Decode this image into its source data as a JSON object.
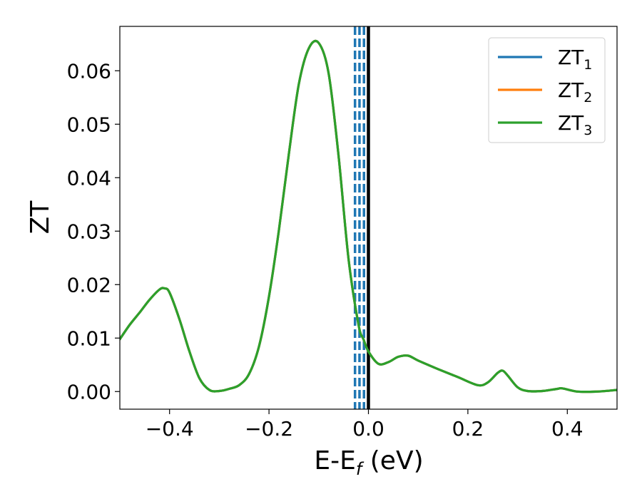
{
  "chart_data": {
    "type": "line",
    "title": "",
    "xlabel": "E-E",
    "xlabel_subscript": "f",
    "xlabel_unit": " (eV)",
    "ylabel": "ZT",
    "xlim": [
      -0.5,
      0.5
    ],
    "ylim": [
      -0.0033,
      0.0683
    ],
    "xticks": [
      -0.4,
      -0.2,
      0.0,
      0.2,
      0.4
    ],
    "xtick_labels": [
      "−0.4",
      "−0.2",
      "0.0",
      "0.2",
      "0.4"
    ],
    "yticks": [
      0.0,
      0.01,
      0.02,
      0.03,
      0.04,
      0.05,
      0.06
    ],
    "ytick_labels": [
      "0.00",
      "0.01",
      "0.02",
      "0.03",
      "0.04",
      "0.05",
      "0.06"
    ],
    "grid": false,
    "legend_position": "top-right",
    "series": [
      {
        "name": "ZT",
        "name_subscript": "1",
        "color": "#1f77b4",
        "x": [
          -0.5,
          -0.48,
          -0.46,
          -0.44,
          -0.42,
          -0.41,
          -0.4,
          -0.38,
          -0.36,
          -0.34,
          -0.32,
          -0.3,
          -0.28,
          -0.26,
          -0.24,
          -0.22,
          -0.2,
          -0.18,
          -0.16,
          -0.14,
          -0.12,
          -0.1,
          -0.08,
          -0.06,
          -0.04,
          -0.02,
          -0.01,
          0.0,
          0.02,
          0.04,
          0.06,
          0.08,
          0.1,
          0.14,
          0.18,
          0.22,
          0.24,
          0.26,
          0.27,
          0.28,
          0.3,
          0.32,
          0.35,
          0.38,
          0.39,
          0.42,
          0.46,
          0.5
        ],
        "y": [
          0.0098,
          0.0125,
          0.0148,
          0.0172,
          0.0191,
          0.0193,
          0.0185,
          0.0135,
          0.0075,
          0.0025,
          0.0003,
          0.0001,
          0.0005,
          0.0012,
          0.0033,
          0.0085,
          0.0178,
          0.0302,
          0.0445,
          0.0575,
          0.0642,
          0.0652,
          0.0595,
          0.044,
          0.0248,
          0.0125,
          0.0098,
          0.0075,
          0.0052,
          0.0055,
          0.0065,
          0.0067,
          0.0058,
          0.0042,
          0.0027,
          0.0012,
          0.0017,
          0.0035,
          0.0039,
          0.003,
          0.0008,
          0.0001,
          0.0001,
          0.0005,
          0.0006,
          0.0,
          0.0,
          0.0003
        ]
      },
      {
        "name": "ZT",
        "name_subscript": "2",
        "color": "#ff7f0e",
        "x": [
          -0.5,
          -0.48,
          -0.46,
          -0.44,
          -0.42,
          -0.41,
          -0.4,
          -0.38,
          -0.36,
          -0.34,
          -0.32,
          -0.3,
          -0.28,
          -0.26,
          -0.24,
          -0.22,
          -0.2,
          -0.18,
          -0.16,
          -0.14,
          -0.12,
          -0.1,
          -0.08,
          -0.06,
          -0.04,
          -0.02,
          -0.01,
          0.0,
          0.02,
          0.04,
          0.06,
          0.08,
          0.1,
          0.14,
          0.18,
          0.22,
          0.24,
          0.26,
          0.27,
          0.28,
          0.3,
          0.32,
          0.35,
          0.38,
          0.39,
          0.42,
          0.46,
          0.5
        ],
        "y": [
          0.0098,
          0.0125,
          0.0148,
          0.0172,
          0.0191,
          0.0193,
          0.0185,
          0.0135,
          0.0075,
          0.0025,
          0.0003,
          0.0001,
          0.0005,
          0.0012,
          0.0033,
          0.0085,
          0.0178,
          0.0302,
          0.0445,
          0.0575,
          0.0642,
          0.0652,
          0.0595,
          0.044,
          0.0248,
          0.0125,
          0.0098,
          0.0075,
          0.0052,
          0.0055,
          0.0065,
          0.0067,
          0.0058,
          0.0042,
          0.0027,
          0.0012,
          0.0017,
          0.0035,
          0.0039,
          0.003,
          0.0008,
          0.0001,
          0.0001,
          0.0005,
          0.0006,
          0.0,
          0.0,
          0.0003
        ]
      },
      {
        "name": "ZT",
        "name_subscript": "3",
        "color": "#2ca02c",
        "x": [
          -0.5,
          -0.48,
          -0.46,
          -0.44,
          -0.42,
          -0.41,
          -0.4,
          -0.38,
          -0.36,
          -0.34,
          -0.32,
          -0.3,
          -0.28,
          -0.26,
          -0.24,
          -0.22,
          -0.2,
          -0.18,
          -0.16,
          -0.14,
          -0.12,
          -0.1,
          -0.08,
          -0.06,
          -0.04,
          -0.02,
          -0.01,
          0.0,
          0.02,
          0.04,
          0.06,
          0.08,
          0.1,
          0.14,
          0.18,
          0.22,
          0.24,
          0.26,
          0.27,
          0.28,
          0.3,
          0.32,
          0.35,
          0.38,
          0.39,
          0.42,
          0.46,
          0.5
        ],
        "y": [
          0.0098,
          0.0125,
          0.0148,
          0.0172,
          0.0191,
          0.0193,
          0.0185,
          0.0135,
          0.0075,
          0.0025,
          0.0003,
          0.0001,
          0.0005,
          0.0012,
          0.0033,
          0.0085,
          0.0178,
          0.0302,
          0.0445,
          0.0575,
          0.0642,
          0.0652,
          0.0595,
          0.044,
          0.0248,
          0.0125,
          0.0098,
          0.0075,
          0.0052,
          0.0055,
          0.0065,
          0.0067,
          0.0058,
          0.0042,
          0.0027,
          0.0012,
          0.0017,
          0.0035,
          0.0039,
          0.003,
          0.0008,
          0.0001,
          0.0001,
          0.0005,
          0.0006,
          0.0,
          0.0,
          0.0003
        ]
      }
    ],
    "vertical_lines": [
      {
        "x": -0.027,
        "style": "dashed",
        "color": "#1f77b4"
      },
      {
        "x": -0.018,
        "style": "dashed",
        "color": "#1f77b4"
      },
      {
        "x": -0.009,
        "style": "dashed",
        "color": "#1f77b4"
      },
      {
        "x": 0.0,
        "style": "solid",
        "color": "#000000"
      }
    ]
  }
}
